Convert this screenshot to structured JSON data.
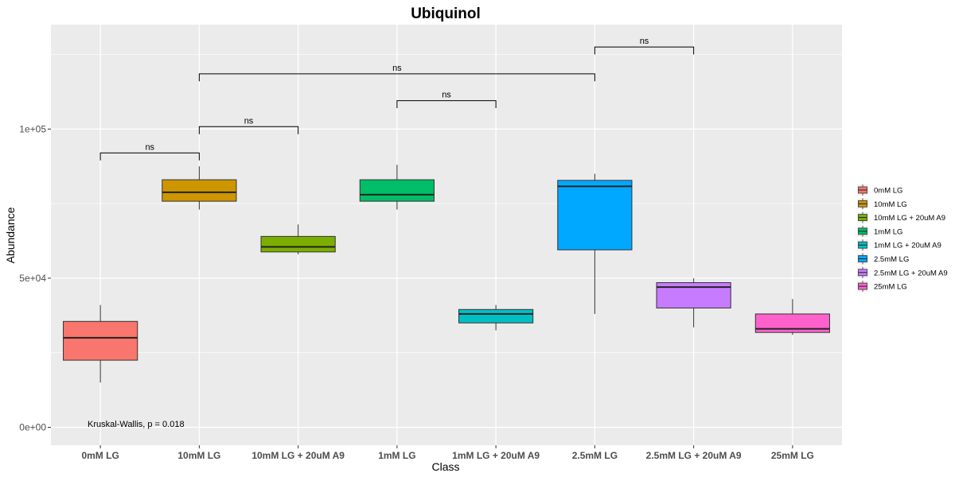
{
  "chart_data": {
    "type": "box",
    "title": "Ubiquinol",
    "xlabel": "Class",
    "ylabel": "Abundance",
    "ylim": [
      -6000,
      135000
    ],
    "y_ticks": [
      0,
      50000,
      100000
    ],
    "y_tick_labels": [
      "0e+00",
      "5e+04",
      "1e+05"
    ],
    "grid": true,
    "legend_position": "right",
    "categories": [
      "0mM LG",
      "10mM LG",
      "10mM LG + 20uM A9",
      "1mM LG",
      "1mM LG + 20uM A9",
      "2.5mM LG",
      "2.5mM LG + 20uM A9",
      "25mM LG"
    ],
    "colors": [
      "#F8766D",
      "#CD9600",
      "#7CAE00",
      "#00BE67",
      "#00BFC4",
      "#00A9FF",
      "#C77CFF",
      "#FF61CC"
    ],
    "boxes": [
      {
        "min": 15000,
        "q1": 22500,
        "median": 30000,
        "q3": 35500,
        "max": 41000
      },
      {
        "min": 73000,
        "q1": 75800,
        "median": 78800,
        "q3": 83000,
        "max": 87500
      },
      {
        "min": 58000,
        "q1": 58800,
        "median": 60500,
        "q3": 64000,
        "max": 68000
      },
      {
        "min": 73000,
        "q1": 75800,
        "median": 78000,
        "q3": 83000,
        "max": 88000
      },
      {
        "min": 32500,
        "q1": 35000,
        "median": 38000,
        "q3": 39500,
        "max": 41000
      },
      {
        "min": 38000,
        "q1": 59500,
        "median": 80800,
        "q3": 82800,
        "max": 85000
      },
      {
        "min": 33500,
        "q1": 40000,
        "median": 47000,
        "q3": 48500,
        "max": 50000
      },
      {
        "min": 31000,
        "q1": 31800,
        "median": 33000,
        "q3": 38000,
        "max": 43000
      }
    ],
    "comparisons": [
      {
        "from": 0,
        "to": 1,
        "label": "ns",
        "y": 92000,
        "drop": 2500
      },
      {
        "from": 1,
        "to": 2,
        "label": "ns",
        "y": 100800,
        "drop": 2500
      },
      {
        "from": 3,
        "to": 4,
        "label": "ns",
        "y": 109500,
        "drop": 2500
      },
      {
        "from": 1,
        "to": 5,
        "label": "ns",
        "y": 118500,
        "drop": 2500
      },
      {
        "from": 5,
        "to": 6,
        "label": "ns",
        "y": 127500,
        "drop": 2500
      }
    ],
    "annotation": "Kruskal-Wallis, p = 0.018"
  }
}
